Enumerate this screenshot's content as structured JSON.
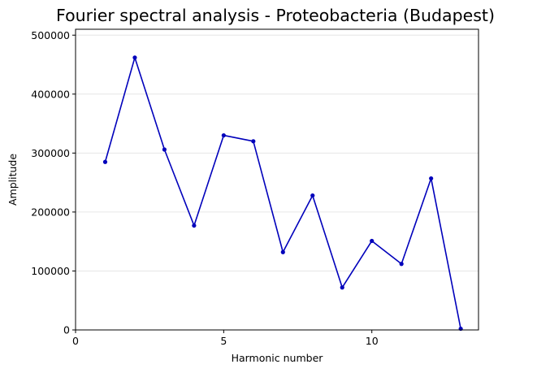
{
  "chart_data": {
    "type": "line",
    "title": "Fourier spectral analysis - Proteobacteria (Budapest)",
    "xlabel": "Harmonic number",
    "ylabel": "Amplitude",
    "x": [
      1,
      2,
      3,
      4,
      5,
      6,
      7,
      8,
      9,
      10,
      11,
      12,
      13
    ],
    "series": [
      {
        "values": [
          285000,
          462000,
          306000,
          177000,
          330000,
          320000,
          132000,
          228000,
          72000,
          151000,
          112000,
          257000,
          2000
        ],
        "color": "#0000bb"
      }
    ],
    "xlim": [
      0,
      13.6
    ],
    "ylim": [
      0,
      510000
    ],
    "xticks": [
      0,
      5,
      10
    ],
    "xtick_labels": [
      "0",
      "5",
      "10"
    ],
    "yticks": [
      0,
      100000,
      200000,
      300000,
      400000,
      500000
    ],
    "ytick_labels": [
      "0",
      "100000",
      "200000",
      "300000",
      "400000",
      "500000"
    ],
    "grid": "horizontal",
    "grid_color": "#e6e6e6",
    "legend": "none"
  }
}
